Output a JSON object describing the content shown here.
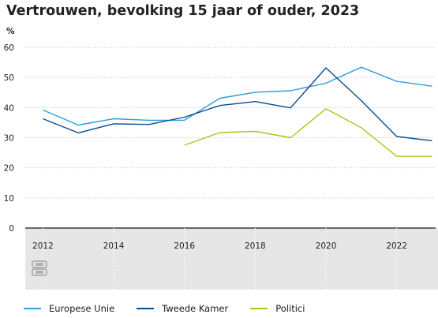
{
  "title": "Vertrouwen, bevolking 15 jaar of ouder, 2023",
  "colors": {
    "europese_unie": "#2a9fd6",
    "tweede_kamer": "#0b4a91",
    "politici": "#a9c61e"
  },
  "legend": [
    {
      "label": "Europese Unie",
      "color": "#2a9fd6"
    },
    {
      "label": "Tweede Kamer",
      "color": "#0b4a91"
    },
    {
      "label": "Politici",
      "color": "#a9c61e"
    }
  ],
  "chart_data": {
    "type": "line",
    "title": "Vertrouwen, bevolking 15 jaar of ouder, 2023",
    "ylabel": "%",
    "ylim": [
      0,
      60
    ],
    "yticks": [
      0,
      10,
      20,
      30,
      40,
      50,
      60
    ],
    "xlim": [
      2011.5,
      2023.1
    ],
    "xticks": [
      2012,
      2014,
      2016,
      2018,
      2020,
      2022
    ],
    "grid": true,
    "legend_position": "bottom",
    "x": [
      2012,
      2013,
      2014,
      2015,
      2016,
      2017,
      2018,
      2019,
      2020,
      2021,
      2022,
      2023
    ],
    "series": [
      {
        "name": "Europese Unie",
        "color": "#2a9fd6",
        "values": [
          39.2,
          34.2,
          36.3,
          35.8,
          35.8,
          43.1,
          45.1,
          45.6,
          48.1,
          53.4,
          48.7,
          47.1
        ]
      },
      {
        "name": "Tweede Kamer",
        "color": "#0b4a91",
        "values": [
          36.3,
          31.6,
          34.6,
          34.4,
          36.8,
          40.7,
          42.0,
          39.9,
          53.2,
          42.3,
          30.4,
          29.0
        ]
      },
      {
        "name": "Politici",
        "color": "#a9c61e",
        "values": [
          null,
          null,
          null,
          null,
          27.5,
          31.7,
          32.1,
          30.0,
          39.6,
          33.3,
          23.8,
          23.8
        ]
      }
    ]
  }
}
